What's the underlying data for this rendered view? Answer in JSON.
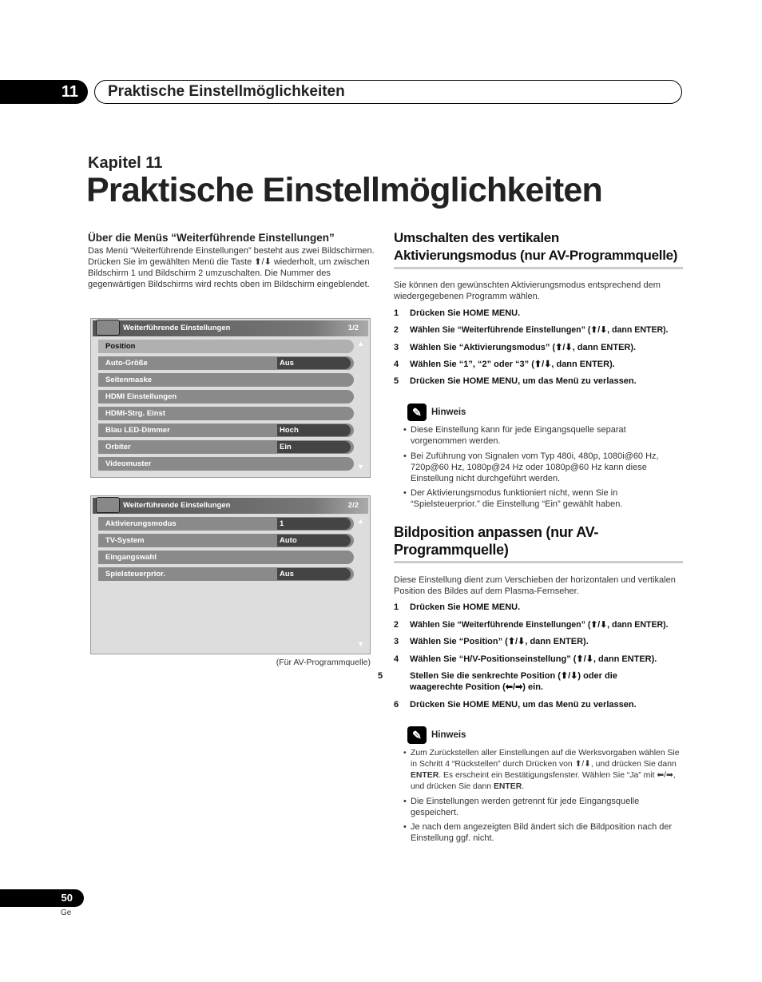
{
  "header": {
    "chapter_number": "11",
    "title": "Praktische Einstellmöglichkeiten"
  },
  "chapter_label": "Kapitel 11",
  "page_title": "Praktische Einstellmöglichkeiten",
  "left": {
    "heading": "Über die Menüs “Weiterführende Einstellungen”",
    "text": "Das Menü “Weiterführende Einstellungen” besteht aus zwei Bildschirmen. Drücken Sie im gewählten Menü die Taste ⬆/⬇ wiederholt, um zwischen Bildschirm 1 und Bildschirm 2 umzuschalten. Die Nummer des gegenwärtigen Bildschirms wird rechts oben im Bildschirm eingeblendet.",
    "menu1": {
      "title": "Weiterführende Einstellungen",
      "page": "1/2",
      "rows": [
        {
          "label": "Position",
          "value": null
        },
        {
          "label": "Auto-Größe",
          "value": "Aus"
        },
        {
          "label": "Seitenmaske",
          "value": null
        },
        {
          "label": "HDMI Einstellungen",
          "value": null
        },
        {
          "label": "HDMI-Strg. Einst",
          "value": null
        },
        {
          "label": "Blau LED-Dimmer",
          "value": "Hoch"
        },
        {
          "label": "Orbiter",
          "value": "Ein"
        },
        {
          "label": "Videomuster",
          "value": null
        }
      ]
    },
    "menu2": {
      "title": "Weiterführende Einstellungen",
      "page": "2/2",
      "rows": [
        {
          "label": "Aktivierungsmodus",
          "value": "1"
        },
        {
          "label": "TV-System",
          "value": "Auto"
        },
        {
          "label": "Eingangswahl",
          "value": null
        },
        {
          "label": "Spielsteuerprior.",
          "value": "Aus"
        }
      ]
    },
    "caption": "(Für AV-Programmquelle)"
  },
  "sec1": {
    "heading": "Umschalten des vertikalen Aktivierungsmodus (nur AV-Programmquelle)",
    "intro": "Sie können den gewünschten Aktivierungsmodus entsprechend dem wiedergegebenen Programm wählen.",
    "steps": [
      {
        "n": "1",
        "t": "Drücken Sie HOME MENU."
      },
      {
        "n": "2",
        "t": "Wählen Sie “Weiterführende Einstellungen” (⬆/⬇, dann ENTER)."
      },
      {
        "n": "3",
        "t": "Wählen Sie “Aktivierungsmodus” (⬆/⬇, dann ENTER)."
      },
      {
        "n": "4",
        "t": "Wählen Sie “1”, “2” oder “3” (⬆/⬇, dann ENTER)."
      },
      {
        "n": "5",
        "t": "Drücken Sie HOME MENU, um das Menü zu verlassen."
      }
    ],
    "note_label": "Hinweis",
    "notes": [
      "Diese Einstellung kann für jede Eingangsquelle separat vorgenommen werden.",
      "Bei Zuführung von Signalen vom Typ 480i, 480p, 1080i@60 Hz, 720p@60 Hz, 1080p@24 Hz oder 1080p@60 Hz kann diese Einstellung nicht durchgeführt werden.",
      "Der Aktivierungsmodus funktioniert nicht, wenn Sie in “Spielsteuerprior.” die Einstellung “Ein” gewählt haben."
    ]
  },
  "sec2": {
    "heading": "Bildposition anpassen (nur AV-Programmquelle)",
    "intro": "Diese Einstellung dient zum Verschieben der horizontalen und vertikalen Position des Bildes auf dem Plasma-Fernseher.",
    "steps": [
      {
        "n": "1",
        "t": "Drücken Sie HOME MENU."
      },
      {
        "n": "2",
        "t": "Wählen Sie “Weiterführende Einstellungen” (⬆/⬇, dann ENTER)."
      },
      {
        "n": "3",
        "t": "Wählen Sie “Position” (⬆/⬇, dann ENTER)."
      },
      {
        "n": "4",
        "t": "Wählen Sie “H/V-Positionseinstellung” (⬆/⬇, dann ENTER)."
      },
      {
        "n": "5",
        "t": "Stellen Sie die senkrechte Position (⬆/⬇) oder die waagerechte Position (⬅/➡) ein."
      },
      {
        "n": "6",
        "t": "Drücken Sie HOME MENU, um das Menü zu verlassen."
      }
    ],
    "note_label": "Hinweis",
    "note1": {
      "a": "Zum Zurückstellen aller Einstellungen auf die Werksvorgaben wählen Sie in Schritt 4 “Rückstellen” durch Drücken von ⬆/⬇, und drücken Sie dann ",
      "b": "ENTER",
      "c": ". Es erscheint ein Bestätigungsfenster. Wählen Sie “Ja” mit ⬅/➡, und drücken Sie dann ",
      "d": "ENTER",
      "e": "."
    },
    "notes": [
      "Die Einstellungen werden getrennt für jede Eingangsquelle gespeichert.",
      "Je nach dem angezeigten Bild ändert sich die Bildposition nach der Einstellung ggf. nicht."
    ]
  },
  "footer": {
    "page_number": "50",
    "language": "Ge"
  }
}
